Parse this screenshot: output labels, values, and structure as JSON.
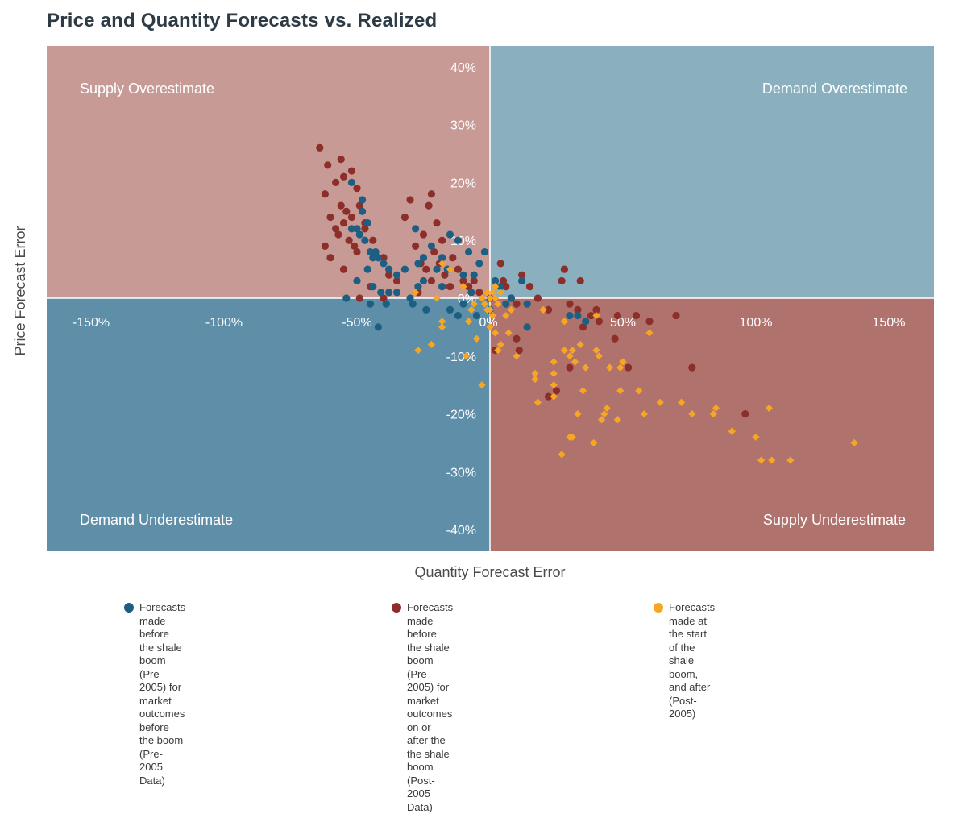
{
  "chart_data": {
    "type": "scatter",
    "title": "Price and Quantity Forecasts vs. Realized",
    "xlabel": "Quantity Forecast Error",
    "ylabel": "Price Forecast Error",
    "xlim": [
      -1.67,
      1.67
    ],
    "ylim": [
      -0.435,
      0.435
    ],
    "x_ticks": [
      -1.5,
      -1.0,
      -0.5,
      0.0,
      0.5,
      1.0,
      1.5
    ],
    "x_tick_labels": [
      "-150%",
      "-100%",
      "-50%",
      "0%",
      "50%",
      "100%",
      "150%"
    ],
    "y_ticks": [
      0.4,
      0.3,
      0.2,
      0.1,
      0.0,
      -0.1,
      -0.2,
      -0.3,
      -0.4
    ],
    "y_tick_labels": [
      "40%",
      "30%",
      "20%",
      "10%",
      "0%",
      "-10%",
      "-20%",
      "-30%",
      "-40%"
    ],
    "quadrants": [
      {
        "label": "Supply Overestimate",
        "position": "top-left",
        "color": "#c89a96"
      },
      {
        "label": "Demand Overestimate",
        "position": "top-right",
        "color": "#8aafbf"
      },
      {
        "label": "Demand Underestimate",
        "position": "bottom-left",
        "color": "#5f8ea8"
      },
      {
        "label": "Supply Underestimate",
        "position": "bottom-right",
        "color": "#b0726d"
      }
    ],
    "series": [
      {
        "name": "Forecasts made before the shale boom (Pre-2005) for market outcomes before the boom (Pre-2005 Data)",
        "color": "#1c5f82",
        "marker": "circle",
        "points": [
          [
            -0.52,
            0.2
          ],
          [
            -0.48,
            0.17
          ],
          [
            -0.46,
            0.13
          ],
          [
            -0.49,
            0.11
          ],
          [
            -0.45,
            0.08
          ],
          [
            -0.44,
            0.07
          ],
          [
            -0.42,
            0.07
          ],
          [
            -0.4,
            0.06
          ],
          [
            -0.38,
            0.05
          ],
          [
            -0.5,
            0.12
          ],
          [
            -0.47,
            0.1
          ],
          [
            -0.43,
            0.08
          ],
          [
            -0.5,
            0.03
          ],
          [
            -0.44,
            0.02
          ],
          [
            -0.41,
            0.01
          ],
          [
            -0.38,
            0.01
          ],
          [
            -0.45,
            -0.01
          ],
          [
            -0.39,
            -0.01
          ],
          [
            -0.35,
            0.04
          ],
          [
            -0.42,
            -0.05
          ],
          [
            -0.28,
            0.12
          ],
          [
            -0.25,
            0.07
          ],
          [
            -0.22,
            0.09
          ],
          [
            -0.27,
            0.06
          ],
          [
            -0.2,
            0.05
          ],
          [
            -0.25,
            0.03
          ],
          [
            -0.27,
            0.02
          ],
          [
            -0.15,
            0.11
          ],
          [
            -0.12,
            0.1
          ],
          [
            -0.18,
            0.07
          ],
          [
            -0.16,
            0.05
          ],
          [
            -0.1,
            0.04
          ],
          [
            -0.08,
            0.08
          ],
          [
            -0.02,
            0.08
          ],
          [
            -0.04,
            0.06
          ],
          [
            0.02,
            0.03
          ],
          [
            0.04,
            0.02
          ],
          [
            0.08,
            0.0
          ],
          [
            0.12,
            0.03
          ],
          [
            0.14,
            -0.01
          ],
          [
            0.06,
            -0.01
          ],
          [
            0.0,
            -0.02
          ],
          [
            -0.05,
            -0.03
          ],
          [
            -0.15,
            -0.02
          ],
          [
            -0.29,
            -0.01
          ],
          [
            -0.24,
            -0.02
          ],
          [
            -0.1,
            -0.01
          ],
          [
            0.3,
            -0.03
          ],
          [
            0.36,
            -0.04
          ],
          [
            0.33,
            -0.03
          ],
          [
            0.14,
            -0.05
          ],
          [
            -0.12,
            -0.03
          ],
          [
            -0.06,
            0.04
          ],
          [
            -0.48,
            0.15
          ],
          [
            -0.52,
            0.12
          ],
          [
            -0.46,
            0.05
          ],
          [
            -0.54,
            0.0
          ],
          [
            -0.32,
            0.05
          ],
          [
            -0.35,
            0.01
          ],
          [
            -0.3,
            0.0
          ],
          [
            -0.18,
            0.02
          ],
          [
            -0.07,
            0.01
          ]
        ]
      },
      {
        "name": "Forecasts made before the shale boom (Pre-2005) for market outcomes on or after the the shale boom (Post-2005 Data)",
        "color": "#8c2e2a",
        "marker": "circle",
        "points": [
          [
            -0.64,
            0.26
          ],
          [
            -0.61,
            0.23
          ],
          [
            -0.56,
            0.24
          ],
          [
            -0.55,
            0.21
          ],
          [
            -0.52,
            0.22
          ],
          [
            -0.5,
            0.19
          ],
          [
            -0.47,
            0.13
          ],
          [
            -0.62,
            0.18
          ],
          [
            -0.58,
            0.2
          ],
          [
            -0.56,
            0.16
          ],
          [
            -0.6,
            0.14
          ],
          [
            -0.55,
            0.13
          ],
          [
            -0.52,
            0.14
          ],
          [
            -0.49,
            0.16
          ],
          [
            -0.47,
            0.12
          ],
          [
            -0.44,
            0.1
          ],
          [
            -0.4,
            0.07
          ],
          [
            -0.58,
            0.12
          ],
          [
            -0.53,
            0.1
          ],
          [
            -0.51,
            0.09
          ],
          [
            -0.55,
            0.05
          ],
          [
            -0.62,
            0.09
          ],
          [
            -0.6,
            0.07
          ],
          [
            -0.57,
            0.11
          ],
          [
            -0.54,
            0.15
          ],
          [
            -0.5,
            0.08
          ],
          [
            -0.49,
            0.0
          ],
          [
            -0.45,
            0.02
          ],
          [
            -0.38,
            0.04
          ],
          [
            -0.35,
            0.03
          ],
          [
            -0.32,
            0.14
          ],
          [
            -0.3,
            0.17
          ],
          [
            -0.28,
            0.09
          ],
          [
            -0.25,
            0.11
          ],
          [
            -0.22,
            0.18
          ],
          [
            -0.23,
            0.16
          ],
          [
            -0.2,
            0.13
          ],
          [
            -0.18,
            0.1
          ],
          [
            -0.26,
            0.06
          ],
          [
            -0.24,
            0.05
          ],
          [
            -0.21,
            0.08
          ],
          [
            -0.19,
            0.06
          ],
          [
            -0.17,
            0.04
          ],
          [
            -0.14,
            0.07
          ],
          [
            -0.12,
            0.05
          ],
          [
            -0.1,
            0.03
          ],
          [
            -0.08,
            0.02
          ],
          [
            -0.06,
            0.03
          ],
          [
            -0.04,
            0.01
          ],
          [
            0.04,
            0.06
          ],
          [
            0.06,
            0.02
          ],
          [
            0.08,
            0.0
          ],
          [
            0.1,
            -0.01
          ],
          [
            0.12,
            0.04
          ],
          [
            0.15,
            0.02
          ],
          [
            0.18,
            0.0
          ],
          [
            0.22,
            -0.02
          ],
          [
            0.27,
            0.03
          ],
          [
            0.28,
            0.05
          ],
          [
            0.34,
            0.03
          ],
          [
            0.3,
            -0.01
          ],
          [
            0.33,
            -0.02
          ],
          [
            0.38,
            -0.03
          ],
          [
            0.41,
            -0.04
          ],
          [
            0.48,
            -0.03
          ],
          [
            0.55,
            -0.03
          ],
          [
            0.6,
            -0.04
          ],
          [
            0.7,
            -0.03
          ],
          [
            0.47,
            -0.07
          ],
          [
            0.52,
            -0.12
          ],
          [
            0.3,
            -0.12
          ],
          [
            0.22,
            -0.17
          ],
          [
            0.25,
            -0.16
          ],
          [
            0.4,
            -0.02
          ],
          [
            0.35,
            -0.05
          ],
          [
            0.76,
            -0.12
          ],
          [
            0.96,
            -0.2
          ],
          [
            0.11,
            -0.09
          ],
          [
            0.02,
            -0.09
          ],
          [
            0.0,
            0.0
          ],
          [
            -0.15,
            0.02
          ],
          [
            -0.22,
            0.03
          ],
          [
            -0.4,
            0.0
          ],
          [
            -0.27,
            0.01
          ],
          [
            0.05,
            0.03
          ],
          [
            0.1,
            -0.07
          ]
        ]
      },
      {
        "name": "Forecasts made at the start of the shale boom, and after (Post-2005)",
        "color": "#f6a623",
        "marker": "diamond",
        "points": [
          [
            0.0,
            0.0
          ],
          [
            0.01,
            0.01
          ],
          [
            -0.01,
            0.01
          ],
          [
            0.02,
            0.02
          ],
          [
            -0.02,
            -0.01
          ],
          [
            0.0,
            -0.02
          ],
          [
            0.03,
            -0.01
          ],
          [
            -0.03,
            0.0
          ],
          [
            0.01,
            -0.03
          ],
          [
            -0.01,
            -0.02
          ],
          [
            0.02,
            0.0
          ],
          [
            0.04,
            0.01
          ],
          [
            -0.18,
            0.06
          ],
          [
            -0.15,
            0.05
          ],
          [
            -0.28,
            0.01
          ],
          [
            -0.2,
            0.0
          ],
          [
            -0.1,
            0.02
          ],
          [
            -0.06,
            -0.01
          ],
          [
            -0.08,
            -0.04
          ],
          [
            -0.18,
            -0.04
          ],
          [
            -0.18,
            -0.05
          ],
          [
            -0.05,
            -0.07
          ],
          [
            0.0,
            -0.05
          ],
          [
            0.02,
            -0.06
          ],
          [
            0.07,
            -0.06
          ],
          [
            0.04,
            -0.08
          ],
          [
            0.03,
            -0.09
          ],
          [
            0.1,
            -0.1
          ],
          [
            -0.09,
            -0.1
          ],
          [
            -0.27,
            -0.09
          ],
          [
            -0.22,
            -0.08
          ],
          [
            -0.03,
            -0.15
          ],
          [
            0.17,
            -0.13
          ],
          [
            0.17,
            -0.14
          ],
          [
            0.18,
            -0.18
          ],
          [
            0.24,
            -0.11
          ],
          [
            0.24,
            -0.13
          ],
          [
            0.24,
            -0.15
          ],
          [
            0.24,
            -0.17
          ],
          [
            0.28,
            -0.09
          ],
          [
            0.3,
            -0.1
          ],
          [
            0.31,
            -0.09
          ],
          [
            0.32,
            -0.11
          ],
          [
            0.34,
            -0.08
          ],
          [
            0.36,
            -0.12
          ],
          [
            0.35,
            -0.16
          ],
          [
            0.33,
            -0.2
          ],
          [
            0.31,
            -0.24
          ],
          [
            0.3,
            -0.24
          ],
          [
            0.27,
            -0.27
          ],
          [
            0.4,
            -0.09
          ],
          [
            0.41,
            -0.1
          ],
          [
            0.45,
            -0.12
          ],
          [
            0.5,
            -0.11
          ],
          [
            0.49,
            -0.12
          ],
          [
            0.49,
            -0.16
          ],
          [
            0.44,
            -0.19
          ],
          [
            0.42,
            -0.21
          ],
          [
            0.43,
            -0.2
          ],
          [
            0.48,
            -0.21
          ],
          [
            0.39,
            -0.25
          ],
          [
            0.56,
            -0.16
          ],
          [
            0.58,
            -0.2
          ],
          [
            0.64,
            -0.18
          ],
          [
            0.72,
            -0.18
          ],
          [
            0.76,
            -0.2
          ],
          [
            0.84,
            -0.2
          ],
          [
            0.85,
            -0.19
          ],
          [
            0.91,
            -0.23
          ],
          [
            1.0,
            -0.24
          ],
          [
            1.02,
            -0.28
          ],
          [
            1.06,
            -0.28
          ],
          [
            1.05,
            -0.19
          ],
          [
            1.13,
            -0.28
          ],
          [
            1.37,
            -0.25
          ],
          [
            0.6,
            -0.06
          ],
          [
            0.4,
            -0.03
          ],
          [
            0.28,
            -0.04
          ],
          [
            0.2,
            -0.02
          ],
          [
            0.08,
            -0.02
          ],
          [
            0.06,
            -0.03
          ],
          [
            -0.07,
            -0.02
          ]
        ]
      }
    ]
  },
  "legend": [
    {
      "label": "Forecasts made before the shale boom\n(Pre-2005) for market outcomes before\nthe boom (Pre-2005 Data)",
      "color": "#1c5f82"
    },
    {
      "label": "Forecasts made before the shale boom\n(Pre-2005) for market outcomes on or\nafter the the shale boom (Post-2005 Data)",
      "color": "#8c2e2a"
    },
    {
      "label": "Forecasts made at the start of the\nshale boom, and after (Post-2005)",
      "color": "#f6a623"
    }
  ]
}
